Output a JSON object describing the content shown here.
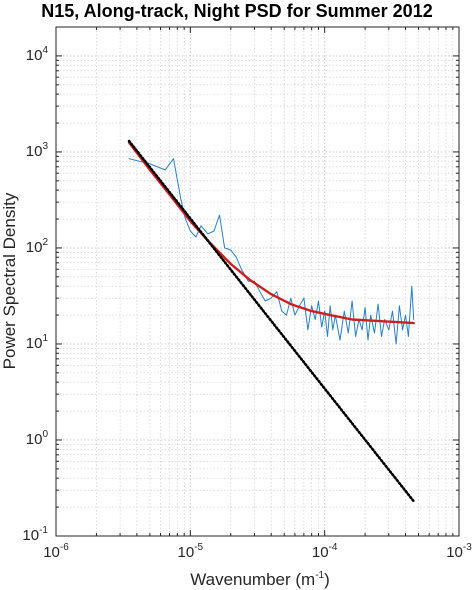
{
  "chart_data": {
    "type": "line",
    "title": "N15, Along-track, Night PSD for Summer 2012",
    "xlabel": "Wavenumber (m",
    "xlabel_exp": "-1",
    "xlabel_tail": ")",
    "ylabel": "Power Spectral Density",
    "xscale": "log",
    "yscale": "log",
    "xlim": [
      1e-06,
      0.001
    ],
    "ylim": [
      0.1,
      20000
    ],
    "grid": "on (major and minor, dotted)",
    "xticks": [
      {
        "base": "10",
        "exp": "-6",
        "value": 1e-06
      },
      {
        "base": "10",
        "exp": "-5",
        "value": 1e-05
      },
      {
        "base": "10",
        "exp": "-4",
        "value": 0.0001
      },
      {
        "base": "10",
        "exp": "-3",
        "value": 0.001
      }
    ],
    "yticks": [
      {
        "base": "10",
        "exp": "-1",
        "value": 0.1
      },
      {
        "base": "10",
        "exp": "0",
        "value": 1
      },
      {
        "base": "10",
        "exp": "1",
        "value": 10
      },
      {
        "base": "10",
        "exp": "2",
        "value": 100
      },
      {
        "base": "10",
        "exp": "3",
        "value": 1000
      },
      {
        "base": "10",
        "exp": "4",
        "value": 10000
      }
    ],
    "series": [
      {
        "style": "thin blue line (measured PSD)",
        "color": "#2a7fc1",
        "x": [
          3.5e-06,
          5e-06,
          6.5e-06,
          7.5e-06,
          8.5e-06,
          9.2e-06,
          1e-05,
          1.1e-05,
          1.2e-05,
          1.35e-05,
          1.5e-05,
          1.65e-05,
          1.8e-05,
          2e-05,
          2.2e-05,
          2.4e-05,
          2.7e-05,
          3e-05,
          3.3e-05,
          3.6e-05,
          4e-05,
          4.4e-05,
          4.8e-05,
          5.2e-05,
          5.6e-05,
          6e-05,
          6.5e-05,
          7e-05,
          7.5e-05,
          8e-05,
          8.5e-05,
          9e-05,
          9.5e-05,
          0.0001,
          0.000105,
          0.00011,
          0.000115,
          0.00012,
          0.00013,
          0.00014,
          0.00015,
          0.00016,
          0.00017,
          0.00018,
          0.00019,
          0.0002,
          0.00021,
          0.00022,
          0.000235,
          0.00025,
          0.000265,
          0.00028,
          0.0003,
          0.00032,
          0.00034,
          0.00036,
          0.00038,
          0.0004,
          0.00042,
          0.000445,
          0.00046
        ],
        "y": [
          850,
          750,
          650,
          850,
          320,
          200,
          150,
          130,
          170,
          140,
          150,
          220,
          100,
          95,
          80,
          60,
          45,
          45,
          35,
          28,
          30,
          35,
          22,
          20,
          30,
          20,
          25,
          30,
          14,
          25,
          18,
          28,
          15,
          22,
          12,
          25,
          14,
          20,
          11,
          22,
          13,
          28,
          12,
          18,
          14,
          24,
          11,
          20,
          13,
          26,
          12,
          18,
          14,
          22,
          10,
          25,
          14,
          20,
          12,
          40,
          18
        ]
      },
      {
        "style": "thick red line (model fit)",
        "color": "#cc1f1f",
        "x": [
          3.5e-06,
          5e-06,
          7e-06,
          1e-05,
          1.4e-05,
          2e-05,
          2.8e-05,
          4e-05,
          5.6e-05,
          8e-05,
          0.00011,
          0.00016,
          0.00022,
          0.00032,
          0.00046
        ],
        "y": [
          1250,
          650,
          360,
          190,
          113,
          68,
          46,
          33,
          26,
          22,
          20,
          18,
          17.5,
          17,
          16.5
        ]
      },
      {
        "style": "dotted black line (power-law reference)",
        "color": "#000000",
        "x": [
          3.5e-06,
          0.00046
        ],
        "y": [
          1300,
          0.23
        ]
      }
    ]
  }
}
